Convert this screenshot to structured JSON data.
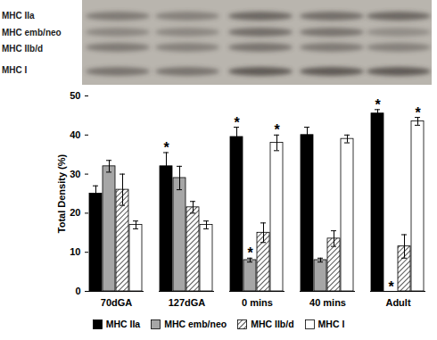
{
  "blot_labels": [
    "MHC IIa",
    "MHC emb/neo",
    "MHC IIb/d",
    "MHC I"
  ],
  "chart_data": {
    "type": "bar",
    "categories": [
      "70dGA",
      "127dGA",
      "0 mins",
      "40 mins",
      "Adult"
    ],
    "ylabel": "Total Density (%)",
    "ylim": [
      0,
      50
    ],
    "yticks": [
      0,
      10,
      20,
      30,
      40,
      50
    ],
    "legend": "bottom",
    "series": [
      {
        "name": "MHC IIa",
        "color": "#000000",
        "values": [
          25,
          32,
          39.5,
          40,
          45.5
        ],
        "errors": [
          2,
          3.5,
          2.5,
          2,
          1
        ],
        "significance": [
          null,
          "*",
          "*",
          null,
          "*"
        ]
      },
      {
        "name": "MHC emb/neo",
        "color": "#a6a6a6",
        "values": [
          32,
          29,
          8,
          8,
          0
        ],
        "errors": [
          1.5,
          3,
          0.5,
          0.5,
          0
        ],
        "significance": [
          null,
          null,
          "*",
          null,
          "*"
        ]
      },
      {
        "name": "MHC IIb/d",
        "color": "#555555",
        "marker": "hatch",
        "values": [
          26,
          21.5,
          15,
          13.5,
          11.5
        ],
        "errors": [
          4,
          1.5,
          2.5,
          2,
          3
        ],
        "significance": [
          null,
          null,
          null,
          null,
          null
        ]
      },
      {
        "name": "MHC I",
        "color": "#ffffff",
        "values": [
          17,
          17,
          38,
          39,
          43.5
        ],
        "errors": [
          1,
          1,
          2,
          1,
          1
        ],
        "significance": [
          null,
          null,
          "*",
          null,
          "*"
        ]
      }
    ]
  }
}
